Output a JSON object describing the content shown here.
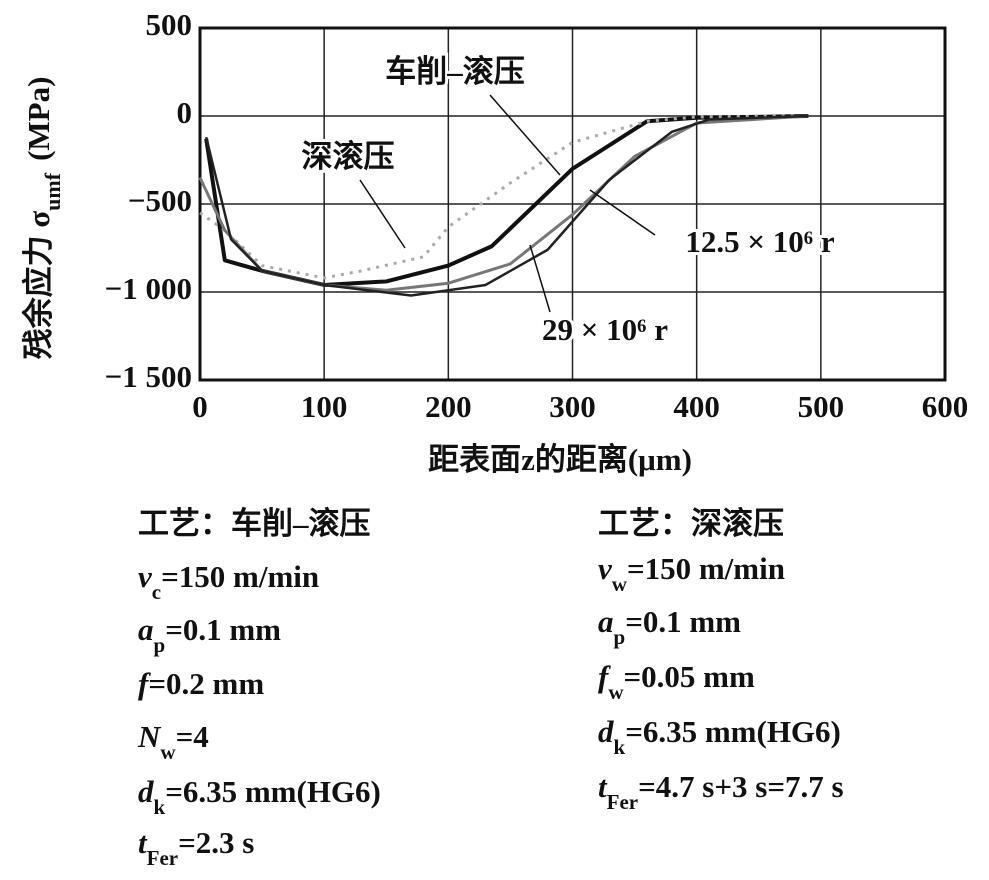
{
  "chart_data": {
    "type": "line",
    "ylabel": {
      "text": "残余应力 σ",
      "sub": "umf",
      "unit": "(MPa)"
    },
    "xlabel": "距表面z的距离(μm)",
    "xlim": [
      0,
      600
    ],
    "xticks": [
      0,
      100,
      200,
      300,
      400,
      500,
      600
    ],
    "ylim": [
      -1500,
      500
    ],
    "yticks": [
      {
        "value": -1500,
        "label": "−1 500"
      },
      {
        "value": -1000,
        "label": "−1 000"
      },
      {
        "value": -500,
        "label": "−500"
      },
      0,
      500
    ],
    "grid": true,
    "series": [
      {
        "name": "车削–滚压",
        "color": "#111111",
        "width": 4,
        "dash": false,
        "x": [
          5,
          20,
          50,
          100,
          150,
          200,
          235,
          300,
          360,
          400,
          490
        ],
        "values": [
          -130,
          -820,
          -880,
          -960,
          -940,
          -850,
          -740,
          -300,
          -30,
          -10,
          0
        ]
      },
      {
        "name": "深滚压",
        "color": "#aaaaaa",
        "width": 3,
        "dash": true,
        "x": [
          0,
          20,
          50,
          100,
          130,
          180,
          200,
          250,
          300,
          360,
          400,
          480
        ],
        "values": [
          -550,
          -650,
          -850,
          -920,
          -880,
          -800,
          -630,
          -380,
          -150,
          -30,
          -5,
          0
        ]
      },
      {
        "name": "12.5 × 10⁶ r",
        "color": "#777777",
        "width": 3,
        "dash": false,
        "x": [
          0,
          20,
          50,
          100,
          150,
          200,
          250,
          300,
          350,
          400,
          490
        ],
        "values": [
          -350,
          -650,
          -880,
          -960,
          -990,
          -950,
          -840,
          -560,
          -230,
          -40,
          0
        ]
      },
      {
        "name": "29 × 10⁶ r",
        "color": "#222222",
        "width": 2.5,
        "dash": false,
        "x": [
          5,
          25,
          50,
          100,
          170,
          230,
          280,
          330,
          380,
          410,
          490
        ],
        "values": [
          -120,
          -700,
          -880,
          -960,
          -1020,
          -960,
          -760,
          -360,
          -90,
          -20,
          0
        ]
      }
    ]
  },
  "params": [
    {
      "title": "工艺：车削–滚压",
      "lines": [
        {
          "sym": "v",
          "sub": "c",
          "text": "=150 m/min"
        },
        {
          "sym": "a",
          "sub": "p",
          "text": "=0.1 mm"
        },
        {
          "sym": "f",
          "text": "=0.2 mm"
        },
        {
          "sym": "N",
          "sub": "w",
          "text": "=4"
        },
        {
          "sym": "d",
          "sub": "k",
          "text": "=6.35 mm(HG6)"
        },
        {
          "sym": "t",
          "sub": "Fer",
          "text": "=2.3 s"
        }
      ]
    },
    {
      "title": "工艺：深滚压",
      "lines": [
        {
          "sym": "v",
          "sub": "w",
          "text": "=150 m/min"
        },
        {
          "sym": "a",
          "sub": "p",
          "text": "=0.1 mm"
        },
        {
          "sym": "f",
          "sub": "w",
          "text": "=0.05 mm"
        },
        {
          "sym": "d",
          "sub": "k",
          "text": "=6.35 mm(HG6)"
        },
        {
          "sym": "t",
          "sub": "Fer",
          "text": "=4.7 s+3 s=7.7 s"
        }
      ]
    }
  ]
}
